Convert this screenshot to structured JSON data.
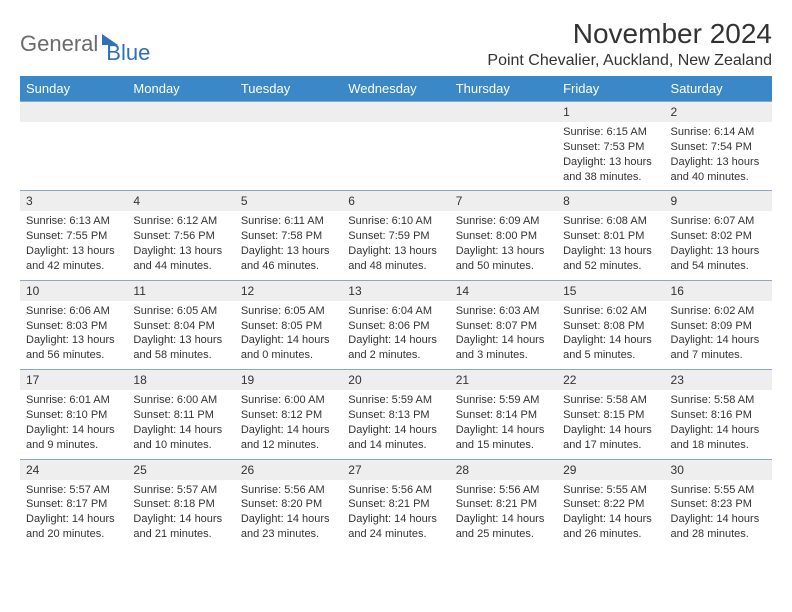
{
  "logo": {
    "general": "General",
    "blue": "Blue"
  },
  "title": "November 2024",
  "location": "Point Chevalier, Auckland, New Zealand",
  "colors": {
    "header_bg": "#3b88c9",
    "header_text": "#ffffff",
    "daynum_bg": "#eeeeee",
    "rule": "#8aa8c4",
    "text": "#333333",
    "logo_gray": "#6b6b6b",
    "logo_blue": "#2f71b8"
  },
  "typography": {
    "title_fontsize": 28,
    "location_fontsize": 16,
    "dow_fontsize": 13,
    "daynum_fontsize": 12,
    "detail_fontsize": 11
  },
  "days_of_week": [
    "Sunday",
    "Monday",
    "Tuesday",
    "Wednesday",
    "Thursday",
    "Friday",
    "Saturday"
  ],
  "weeks": [
    [
      null,
      null,
      null,
      null,
      null,
      {
        "n": "1",
        "sr": "Sunrise: 6:15 AM",
        "ss": "Sunset: 7:53 PM",
        "d1": "Daylight: 13 hours",
        "d2": "and 38 minutes."
      },
      {
        "n": "2",
        "sr": "Sunrise: 6:14 AM",
        "ss": "Sunset: 7:54 PM",
        "d1": "Daylight: 13 hours",
        "d2": "and 40 minutes."
      }
    ],
    [
      {
        "n": "3",
        "sr": "Sunrise: 6:13 AM",
        "ss": "Sunset: 7:55 PM",
        "d1": "Daylight: 13 hours",
        "d2": "and 42 minutes."
      },
      {
        "n": "4",
        "sr": "Sunrise: 6:12 AM",
        "ss": "Sunset: 7:56 PM",
        "d1": "Daylight: 13 hours",
        "d2": "and 44 minutes."
      },
      {
        "n": "5",
        "sr": "Sunrise: 6:11 AM",
        "ss": "Sunset: 7:58 PM",
        "d1": "Daylight: 13 hours",
        "d2": "and 46 minutes."
      },
      {
        "n": "6",
        "sr": "Sunrise: 6:10 AM",
        "ss": "Sunset: 7:59 PM",
        "d1": "Daylight: 13 hours",
        "d2": "and 48 minutes."
      },
      {
        "n": "7",
        "sr": "Sunrise: 6:09 AM",
        "ss": "Sunset: 8:00 PM",
        "d1": "Daylight: 13 hours",
        "d2": "and 50 minutes."
      },
      {
        "n": "8",
        "sr": "Sunrise: 6:08 AM",
        "ss": "Sunset: 8:01 PM",
        "d1": "Daylight: 13 hours",
        "d2": "and 52 minutes."
      },
      {
        "n": "9",
        "sr": "Sunrise: 6:07 AM",
        "ss": "Sunset: 8:02 PM",
        "d1": "Daylight: 13 hours",
        "d2": "and 54 minutes."
      }
    ],
    [
      {
        "n": "10",
        "sr": "Sunrise: 6:06 AM",
        "ss": "Sunset: 8:03 PM",
        "d1": "Daylight: 13 hours",
        "d2": "and 56 minutes."
      },
      {
        "n": "11",
        "sr": "Sunrise: 6:05 AM",
        "ss": "Sunset: 8:04 PM",
        "d1": "Daylight: 13 hours",
        "d2": "and 58 minutes."
      },
      {
        "n": "12",
        "sr": "Sunrise: 6:05 AM",
        "ss": "Sunset: 8:05 PM",
        "d1": "Daylight: 14 hours",
        "d2": "and 0 minutes."
      },
      {
        "n": "13",
        "sr": "Sunrise: 6:04 AM",
        "ss": "Sunset: 8:06 PM",
        "d1": "Daylight: 14 hours",
        "d2": "and 2 minutes."
      },
      {
        "n": "14",
        "sr": "Sunrise: 6:03 AM",
        "ss": "Sunset: 8:07 PM",
        "d1": "Daylight: 14 hours",
        "d2": "and 3 minutes."
      },
      {
        "n": "15",
        "sr": "Sunrise: 6:02 AM",
        "ss": "Sunset: 8:08 PM",
        "d1": "Daylight: 14 hours",
        "d2": "and 5 minutes."
      },
      {
        "n": "16",
        "sr": "Sunrise: 6:02 AM",
        "ss": "Sunset: 8:09 PM",
        "d1": "Daylight: 14 hours",
        "d2": "and 7 minutes."
      }
    ],
    [
      {
        "n": "17",
        "sr": "Sunrise: 6:01 AM",
        "ss": "Sunset: 8:10 PM",
        "d1": "Daylight: 14 hours",
        "d2": "and 9 minutes."
      },
      {
        "n": "18",
        "sr": "Sunrise: 6:00 AM",
        "ss": "Sunset: 8:11 PM",
        "d1": "Daylight: 14 hours",
        "d2": "and 10 minutes."
      },
      {
        "n": "19",
        "sr": "Sunrise: 6:00 AM",
        "ss": "Sunset: 8:12 PM",
        "d1": "Daylight: 14 hours",
        "d2": "and 12 minutes."
      },
      {
        "n": "20",
        "sr": "Sunrise: 5:59 AM",
        "ss": "Sunset: 8:13 PM",
        "d1": "Daylight: 14 hours",
        "d2": "and 14 minutes."
      },
      {
        "n": "21",
        "sr": "Sunrise: 5:59 AM",
        "ss": "Sunset: 8:14 PM",
        "d1": "Daylight: 14 hours",
        "d2": "and 15 minutes."
      },
      {
        "n": "22",
        "sr": "Sunrise: 5:58 AM",
        "ss": "Sunset: 8:15 PM",
        "d1": "Daylight: 14 hours",
        "d2": "and 17 minutes."
      },
      {
        "n": "23",
        "sr": "Sunrise: 5:58 AM",
        "ss": "Sunset: 8:16 PM",
        "d1": "Daylight: 14 hours",
        "d2": "and 18 minutes."
      }
    ],
    [
      {
        "n": "24",
        "sr": "Sunrise: 5:57 AM",
        "ss": "Sunset: 8:17 PM",
        "d1": "Daylight: 14 hours",
        "d2": "and 20 minutes."
      },
      {
        "n": "25",
        "sr": "Sunrise: 5:57 AM",
        "ss": "Sunset: 8:18 PM",
        "d1": "Daylight: 14 hours",
        "d2": "and 21 minutes."
      },
      {
        "n": "26",
        "sr": "Sunrise: 5:56 AM",
        "ss": "Sunset: 8:20 PM",
        "d1": "Daylight: 14 hours",
        "d2": "and 23 minutes."
      },
      {
        "n": "27",
        "sr": "Sunrise: 5:56 AM",
        "ss": "Sunset: 8:21 PM",
        "d1": "Daylight: 14 hours",
        "d2": "and 24 minutes."
      },
      {
        "n": "28",
        "sr": "Sunrise: 5:56 AM",
        "ss": "Sunset: 8:21 PM",
        "d1": "Daylight: 14 hours",
        "d2": "and 25 minutes."
      },
      {
        "n": "29",
        "sr": "Sunrise: 5:55 AM",
        "ss": "Sunset: 8:22 PM",
        "d1": "Daylight: 14 hours",
        "d2": "and 26 minutes."
      },
      {
        "n": "30",
        "sr": "Sunrise: 5:55 AM",
        "ss": "Sunset: 8:23 PM",
        "d1": "Daylight: 14 hours",
        "d2": "and 28 minutes."
      }
    ]
  ]
}
